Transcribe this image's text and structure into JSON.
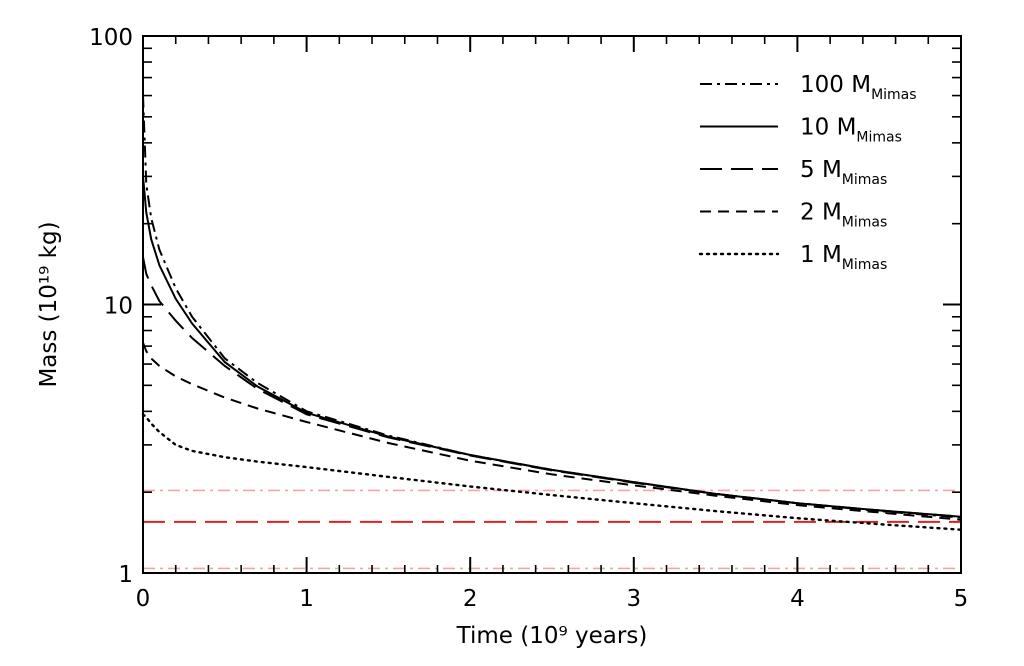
{
  "chart_data": {
    "type": "line",
    "title": "",
    "xlabel": "Time (10⁹ years)",
    "ylabel": "Mass (10¹⁹ kg)",
    "xlim": [
      0,
      5
    ],
    "ylim": [
      1,
      100
    ],
    "yscale": "log",
    "x_ticks": [
      "0",
      "1",
      "2",
      "3",
      "4",
      "5"
    ],
    "y_ticks": [
      "1",
      "10",
      "100"
    ],
    "grid": false,
    "legend_position": "top-right",
    "series": [
      {
        "name": "100 M",
        "name_sub": "Mimas",
        "dash": "dash-dot",
        "x": [
          0,
          0.02,
          0.05,
          0.1,
          0.2,
          0.3,
          0.5,
          0.7,
          1,
          1.5,
          2,
          2.5,
          3,
          3.5,
          4,
          4.5,
          5
        ],
        "y": [
          60,
          28,
          21,
          16,
          11.5,
          9,
          6.3,
          5.1,
          4.0,
          3.25,
          2.75,
          2.42,
          2.18,
          1.97,
          1.82,
          1.7,
          1.61
        ]
      },
      {
        "name": "10 M",
        "name_sub": "Mimas",
        "dash": "solid",
        "x": [
          0,
          0.02,
          0.05,
          0.1,
          0.2,
          0.3,
          0.5,
          0.7,
          1,
          1.5,
          2,
          2.5,
          3,
          3.5,
          4,
          4.5,
          5
        ],
        "y": [
          30,
          22,
          17.5,
          14,
          10.5,
          8.5,
          6.1,
          4.95,
          3.95,
          3.22,
          2.75,
          2.42,
          2.18,
          1.97,
          1.82,
          1.71,
          1.62
        ]
      },
      {
        "name": "5 M",
        "name_sub": "Mimas",
        "dash": "long-dash",
        "x": [
          0,
          0.02,
          0.05,
          0.1,
          0.2,
          0.3,
          0.5,
          0.7,
          1,
          1.5,
          2,
          2.5,
          3,
          3.5,
          4,
          4.5,
          5
        ],
        "y": [
          15,
          13,
          11.8,
          10.3,
          8.7,
          7.5,
          5.9,
          4.85,
          3.9,
          3.2,
          2.74,
          2.41,
          2.17,
          1.97,
          1.82,
          1.71,
          1.62
        ]
      },
      {
        "name": "2 M",
        "name_sub": "Mimas",
        "dash": "short-dash",
        "x": [
          0,
          0.02,
          0.05,
          0.1,
          0.2,
          0.3,
          0.5,
          0.7,
          1,
          1.5,
          2,
          2.5,
          3,
          3.5,
          4,
          4.5,
          5
        ],
        "y": [
          7.2,
          6.7,
          6.3,
          5.9,
          5.4,
          5.05,
          4.5,
          4.1,
          3.65,
          3.05,
          2.62,
          2.33,
          2.12,
          1.94,
          1.79,
          1.68,
          1.58
        ]
      },
      {
        "name": "1 M",
        "name_sub": "Mimas",
        "dash": "dotted",
        "x": [
          0,
          0.02,
          0.05,
          0.1,
          0.2,
          0.3,
          0.5,
          0.7,
          1,
          1.5,
          2,
          2.5,
          3,
          3.5,
          4,
          4.5,
          5
        ],
        "y": [
          3.9,
          3.8,
          3.6,
          3.35,
          3.0,
          2.85,
          2.7,
          2.6,
          2.48,
          2.28,
          2.1,
          1.95,
          1.82,
          1.7,
          1.6,
          1.52,
          1.45
        ]
      }
    ],
    "reference_lines": [
      {
        "y": 2.03,
        "color": "#f4a6a6",
        "style": "dash-dot"
      },
      {
        "y": 1.55,
        "color": "#dd2222",
        "style": "long-dash"
      },
      {
        "y": 1.04,
        "color": "#f4a6a6",
        "style": "dash-dot"
      }
    ]
  }
}
